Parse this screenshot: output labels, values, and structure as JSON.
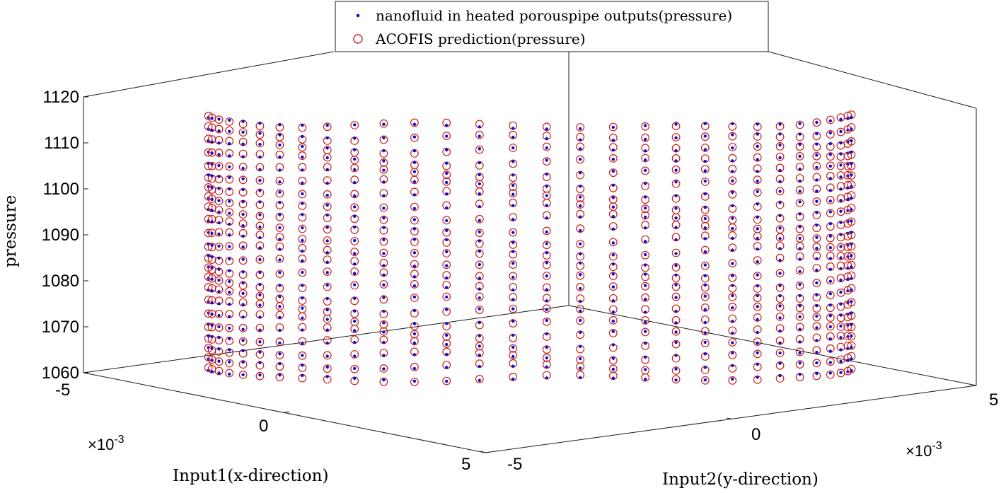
{
  "chart_data": {
    "type": "scatter",
    "projection": "3d",
    "title": "",
    "xlabel": "Input1(x-direction)",
    "ylabel": "Input2(y-direction)",
    "zlabel": "pressure",
    "xlim": [
      -0.005,
      0.005
    ],
    "ylim": [
      -0.005,
      0.005
    ],
    "zlim": [
      1060,
      1120
    ],
    "x_ticks": [
      "-5",
      "0",
      "5"
    ],
    "y_ticks": [
      "-5",
      "0",
      "5"
    ],
    "z_ticks": [
      "1060",
      "1070",
      "1080",
      "1090",
      "1100",
      "1110",
      "1120"
    ],
    "x_exponent": {
      "base": "×10",
      "power": "-3"
    },
    "y_exponent": {
      "base": "×10",
      "power": "-3"
    },
    "grid": false,
    "legend_position": "top-center",
    "series": [
      {
        "name": "nanofluid in heated porouspipe outputs(pressure)",
        "marker": "dot",
        "color": "#1010c8"
      },
      {
        "name": "ACOFIS prediction(pressure)",
        "marker": "open-circle",
        "color": "#cc2020"
      }
    ],
    "grid_description": "points on a circular pipe cross-section grid; pressure varies with radius"
  }
}
